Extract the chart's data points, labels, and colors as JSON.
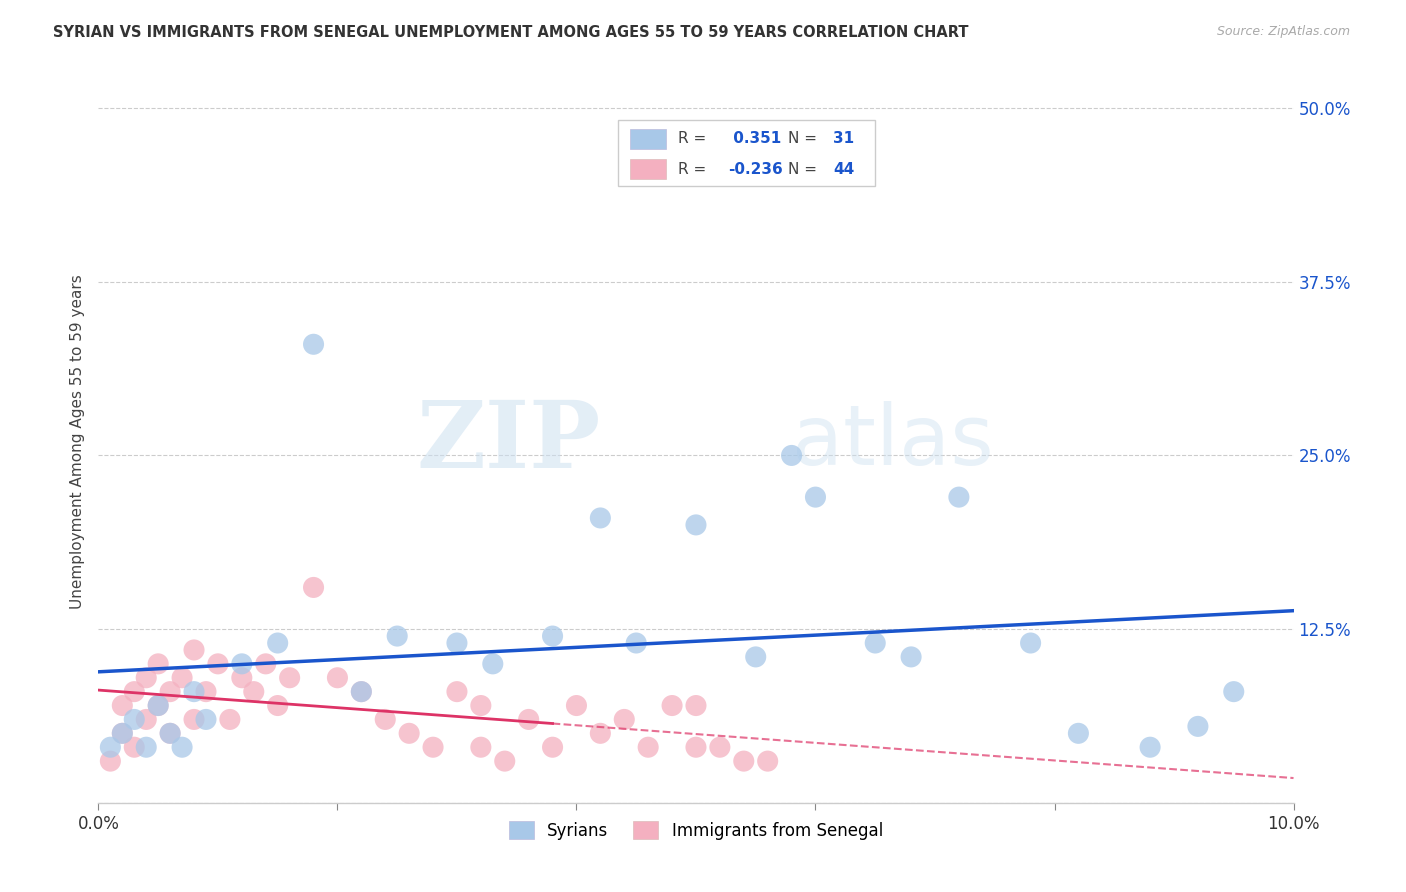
{
  "title": "SYRIAN VS IMMIGRANTS FROM SENEGAL UNEMPLOYMENT AMONG AGES 55 TO 59 YEARS CORRELATION CHART",
  "source": "Source: ZipAtlas.com",
  "ylabel": "Unemployment Among Ages 55 to 59 years",
  "xlim": [
    0.0,
    0.1
  ],
  "ylim": [
    0.0,
    0.52
  ],
  "syrians_x": [
    0.001,
    0.002,
    0.003,
    0.004,
    0.005,
    0.006,
    0.007,
    0.008,
    0.009,
    0.012,
    0.015,
    0.018,
    0.022,
    0.025,
    0.03,
    0.033,
    0.038,
    0.042,
    0.045,
    0.05,
    0.055,
    0.058,
    0.06,
    0.065,
    0.068,
    0.072,
    0.078,
    0.082,
    0.088,
    0.092,
    0.095
  ],
  "syrians_y": [
    0.04,
    0.05,
    0.06,
    0.04,
    0.07,
    0.05,
    0.04,
    0.08,
    0.06,
    0.1,
    0.115,
    0.33,
    0.08,
    0.12,
    0.115,
    0.1,
    0.12,
    0.205,
    0.115,
    0.2,
    0.105,
    0.25,
    0.22,
    0.115,
    0.105,
    0.22,
    0.115,
    0.05,
    0.04,
    0.055,
    0.08
  ],
  "senegal_x": [
    0.001,
    0.002,
    0.002,
    0.003,
    0.003,
    0.004,
    0.004,
    0.005,
    0.005,
    0.006,
    0.006,
    0.007,
    0.008,
    0.008,
    0.009,
    0.01,
    0.011,
    0.012,
    0.013,
    0.014,
    0.015,
    0.016,
    0.018,
    0.02,
    0.022,
    0.024,
    0.026,
    0.028,
    0.03,
    0.032,
    0.032,
    0.034,
    0.036,
    0.038,
    0.04,
    0.042,
    0.044,
    0.046,
    0.048,
    0.05,
    0.05,
    0.052,
    0.054,
    0.056
  ],
  "senegal_y": [
    0.03,
    0.05,
    0.07,
    0.04,
    0.08,
    0.06,
    0.09,
    0.07,
    0.1,
    0.05,
    0.08,
    0.09,
    0.06,
    0.11,
    0.08,
    0.1,
    0.06,
    0.09,
    0.08,
    0.1,
    0.07,
    0.09,
    0.155,
    0.09,
    0.08,
    0.06,
    0.05,
    0.04,
    0.08,
    0.04,
    0.07,
    0.03,
    0.06,
    0.04,
    0.07,
    0.05,
    0.06,
    0.04,
    0.07,
    0.07,
    0.04,
    0.04,
    0.03,
    0.03
  ],
  "syrian_color": "#a8c8e8",
  "senegal_color": "#f4b0c0",
  "syrian_line_color": "#1a55cc",
  "senegal_line_color": "#dd3366",
  "legend_text_color": "#1a55cc",
  "R_syrian": 0.351,
  "N_syrian": 31,
  "R_senegal": -0.236,
  "N_senegal": 44,
  "watermark_zip": "ZIP",
  "watermark_atlas": "atlas",
  "background_color": "#ffffff",
  "grid_color": "#cccccc"
}
